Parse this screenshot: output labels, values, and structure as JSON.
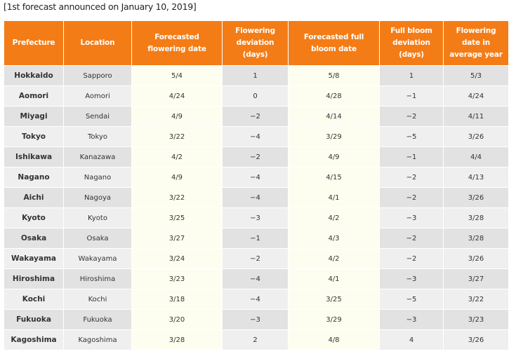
{
  "caption": "[1st forecast announced on January 10, 2019]",
  "columns": [
    "Prefecture",
    "Location",
    "Forecasted flowering date",
    "Flowering deviation (days)",
    "Forecasted full bloom date",
    "Full bloom deviation (days)",
    "Flowering date in average year"
  ],
  "rows": [
    [
      "Hokkaido",
      "Sapporo",
      "5/4",
      "1",
      "5/8",
      "1",
      "5/3"
    ],
    [
      "Aomori",
      "Aomori",
      "4/24",
      "0",
      "4/28",
      "−1",
      "4/24"
    ],
    [
      "Miyagi",
      "Sendai",
      "4/9",
      "−2",
      "4/14",
      "−2",
      "4/11"
    ],
    [
      "Tokyo",
      "Tokyo",
      "3/22",
      "−4",
      "3/29",
      "−5",
      "3/26"
    ],
    [
      "Ishikawa",
      "Kanazawa",
      "4/2",
      "−2",
      "4/9",
      "−1",
      "4/4"
    ],
    [
      "Nagano",
      "Nagano",
      "4/9",
      "−4",
      "4/15",
      "−2",
      "4/13"
    ],
    [
      "Aichi",
      "Nagoya",
      "3/22",
      "−4",
      "4/1",
      "−2",
      "3/26"
    ],
    [
      "Kyoto",
      "Kyoto",
      "3/25",
      "−3",
      "4/2",
      "−3",
      "3/28"
    ],
    [
      "Osaka",
      "Osaka",
      "3/27",
      "−1",
      "4/3",
      "−2",
      "3/28"
    ],
    [
      "Wakayama",
      "Wakayama",
      "3/24",
      "−2",
      "4/2",
      "−2",
      "3/26"
    ],
    [
      "Hiroshima",
      "Hiroshima",
      "3/23",
      "−4",
      "4/1",
      "−3",
      "3/27"
    ],
    [
      "Kochi",
      "Kochi",
      "3/18",
      "−4",
      "3/25",
      "−5",
      "3/22"
    ],
    [
      "Fukuoka",
      "Fukuoka",
      "3/20",
      "−3",
      "3/29",
      "−3",
      "3/23"
    ],
    [
      "Kagoshima",
      "Kagoshima",
      "3/28",
      "2",
      "4/8",
      "4",
      "3/26"
    ]
  ],
  "colors": {
    "header_bg": "#f47c16",
    "row_odd": "#e2e2e2",
    "row_even": "#efefef",
    "highlight_column": "#fefef0"
  }
}
